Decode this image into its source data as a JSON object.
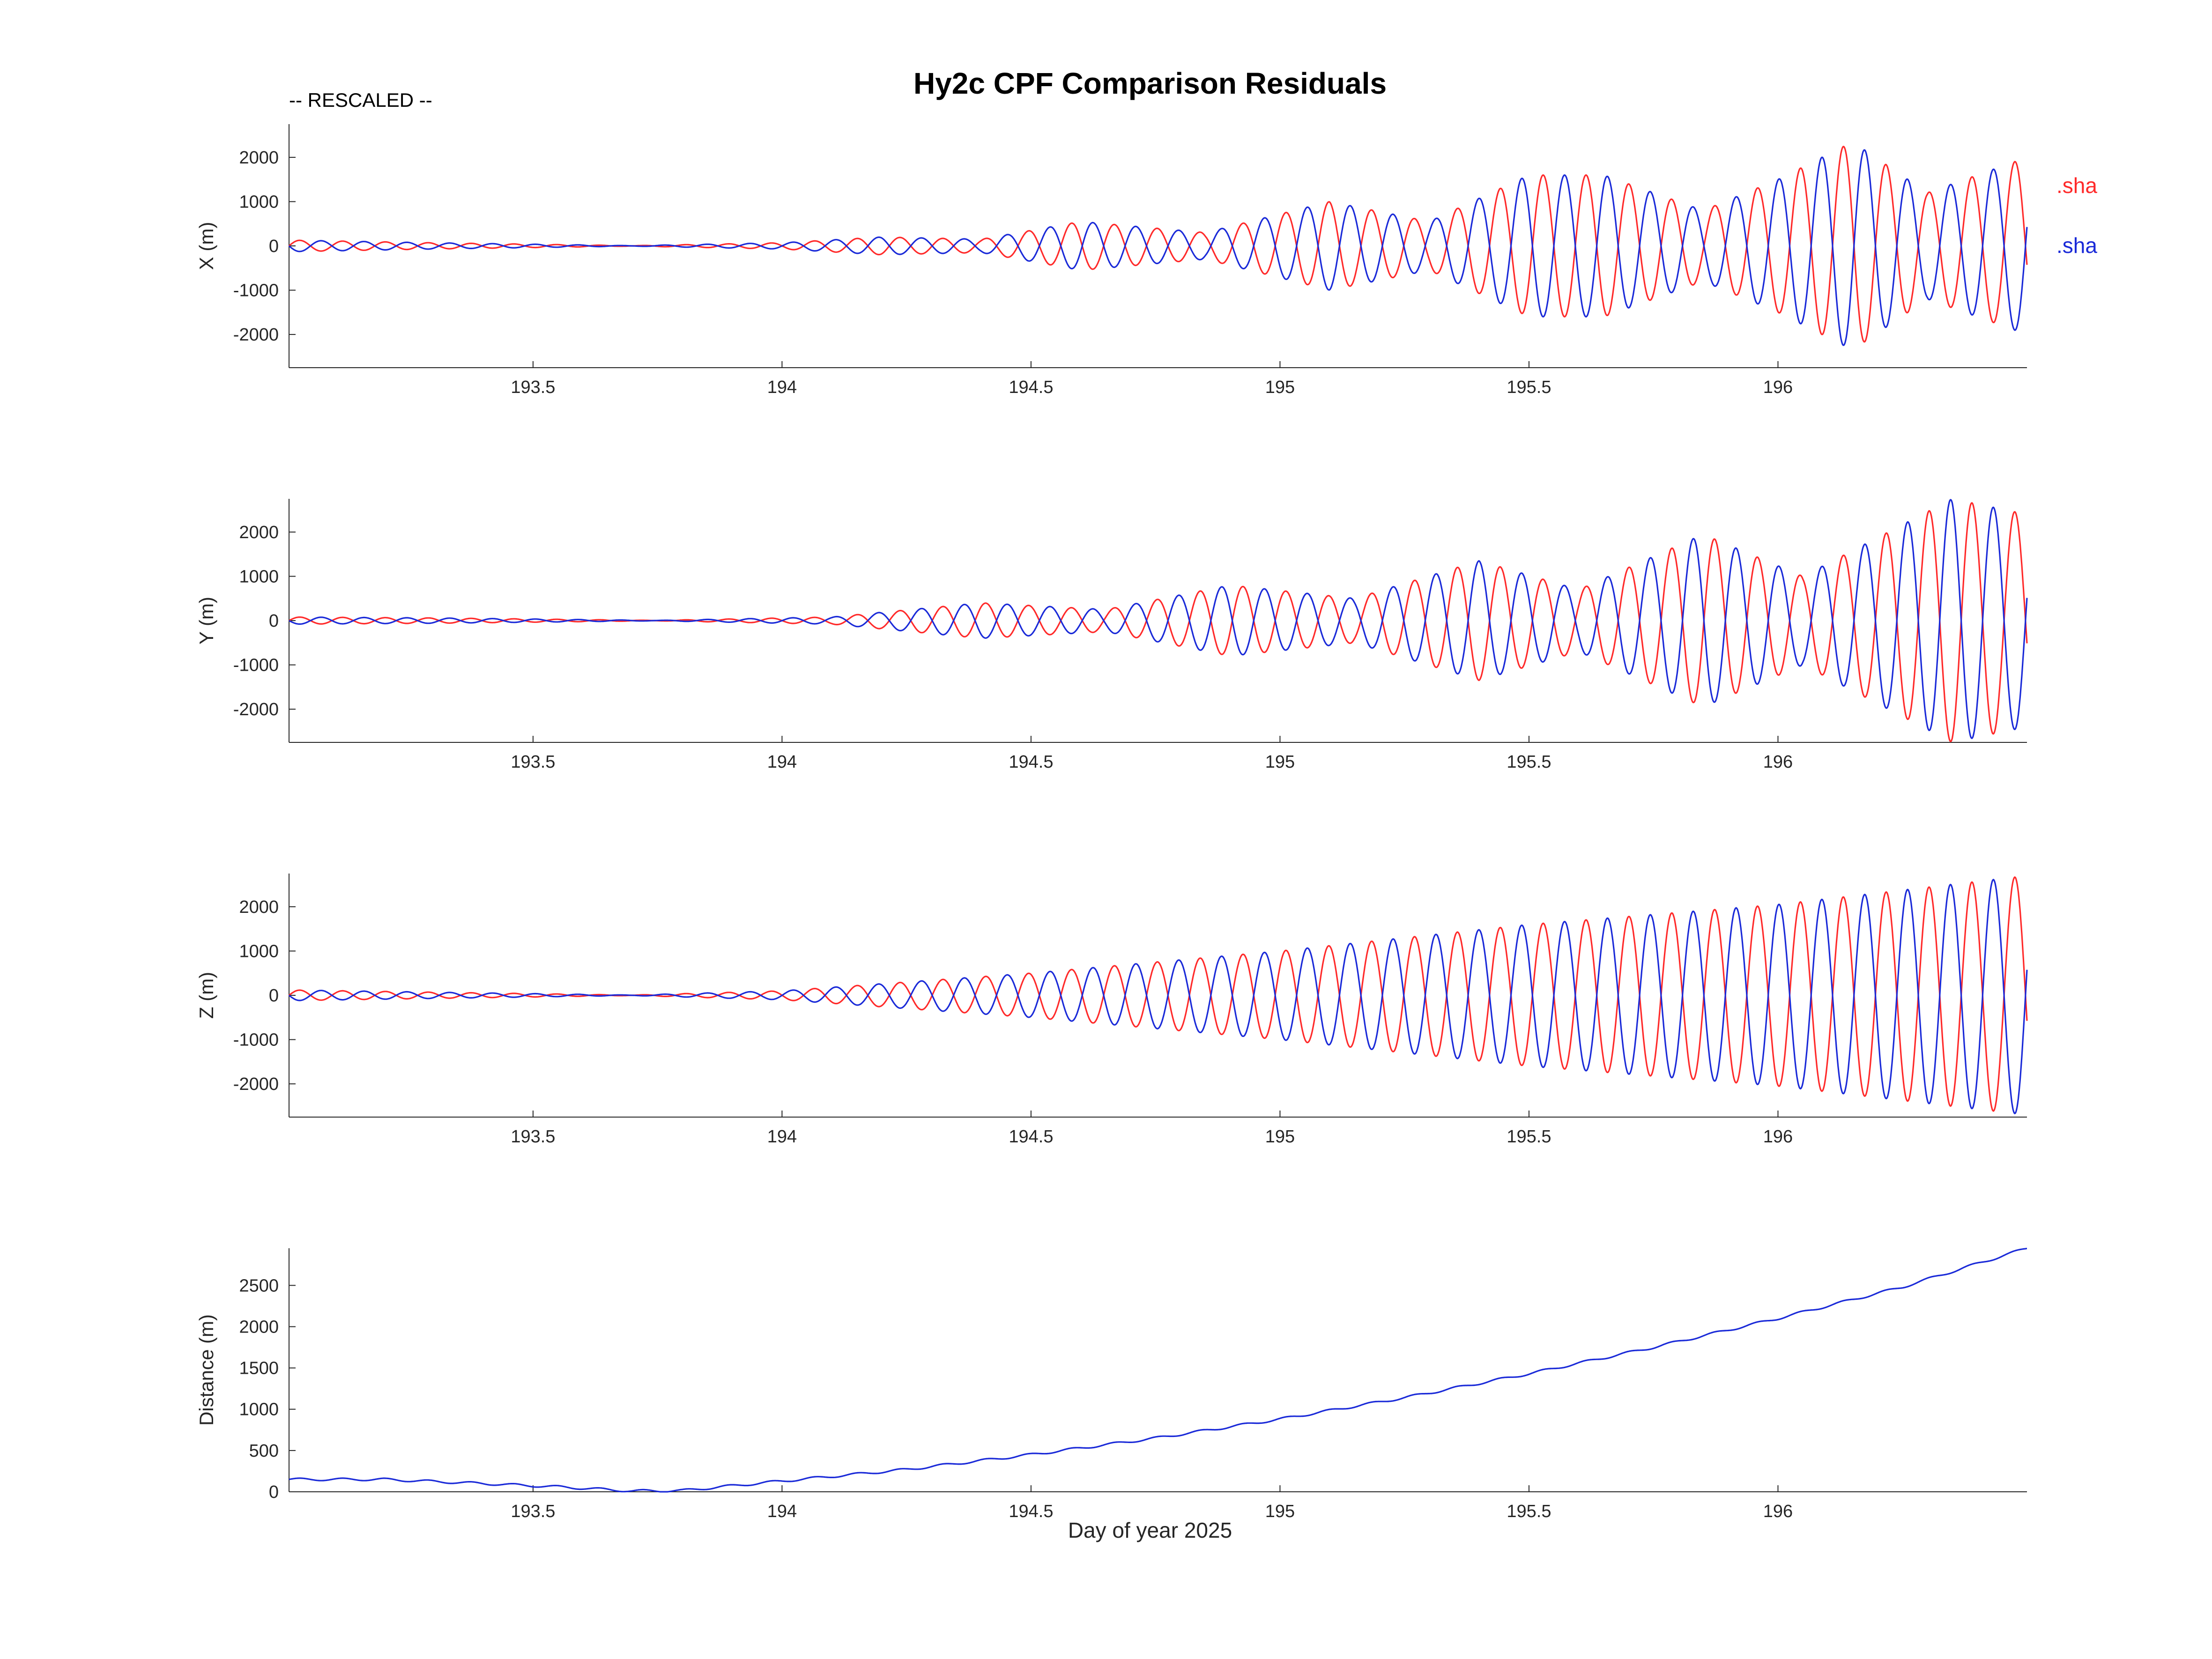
{
  "figure": {
    "title": "Hy2c CPF Comparison Residuals",
    "note": "-- RESCALED --",
    "xlabel": "Day of year 2025"
  },
  "legend": [
    {
      "label": ".sha",
      "color": "#ff2a2a"
    },
    {
      "label": ".sha",
      "color": "#1a2ad8"
    }
  ],
  "chart_data": [
    {
      "type": "line",
      "ylabel": "X (m)",
      "xlim": [
        193.01,
        196.5
      ],
      "ylim": [
        -2750,
        2750
      ],
      "xticks": [
        193.5,
        194,
        194.5,
        195,
        195.5,
        196
      ],
      "xtick_labels": [
        "193.5",
        "194",
        "194.5",
        "195",
        "195.5",
        "196"
      ],
      "yticks": [
        -2000,
        -1000,
        0,
        1000,
        2000
      ],
      "ytick_labels": [
        "-2000",
        "-1000",
        "0",
        "1000",
        "2000"
      ],
      "grid": false,
      "oscillation_period_days": 0.0861,
      "series": [
        {
          "name": ".sha",
          "color": "#ff2a2a",
          "phase": 1,
          "x": [
            193.01,
            193.3,
            193.7,
            194.0,
            194.2,
            194.4,
            194.6,
            194.85,
            195.1,
            195.3,
            195.5,
            195.65,
            195.85,
            196.0,
            196.15,
            196.3,
            196.5
          ],
          "amplitude": [
            130,
            70,
            5,
            70,
            200,
            150,
            550,
            300,
            1000,
            550,
            1600,
            1600,
            800,
            1500,
            2350,
            1200,
            2000
          ]
        },
        {
          "name": ".sha",
          "color": "#1a2ad8",
          "phase": -1,
          "x": [
            193.01,
            193.3,
            193.7,
            194.0,
            194.2,
            194.4,
            194.6,
            194.85,
            195.1,
            195.3,
            195.5,
            195.65,
            195.85,
            196.0,
            196.15,
            196.3,
            196.5
          ],
          "amplitude": [
            130,
            70,
            5,
            70,
            200,
            150,
            550,
            300,
            1000,
            550,
            1600,
            1600,
            800,
            1500,
            2350,
            1200,
            2000
          ]
        }
      ]
    },
    {
      "type": "line",
      "ylabel": "Y (m)",
      "xlim": [
        193.01,
        196.5
      ],
      "ylim": [
        -2750,
        2750
      ],
      "xticks": [
        193.5,
        194,
        194.5,
        195,
        195.5,
        196
      ],
      "xtick_labels": [
        "193.5",
        "194",
        "194.5",
        "195",
        "195.5",
        "196"
      ],
      "yticks": [
        -2000,
        -1000,
        0,
        1000,
        2000
      ],
      "ytick_labels": [
        "-2000",
        "-1000",
        "0",
        "1000",
        "2000"
      ],
      "grid": false,
      "oscillation_period_days": 0.0861,
      "series": [
        {
          "name": ".sha",
          "color": "#ff2a2a",
          "phase": 1,
          "x": [
            193.01,
            193.3,
            193.75,
            194.1,
            194.4,
            194.65,
            194.9,
            195.15,
            195.4,
            195.6,
            195.85,
            196.05,
            196.35,
            196.5
          ],
          "amplitude": [
            80,
            60,
            5,
            80,
            400,
            250,
            800,
            500,
            1350,
            700,
            1950,
            1000,
            2750,
            2400
          ]
        },
        {
          "name": ".sha",
          "color": "#1a2ad8",
          "phase": -1,
          "x": [
            193.01,
            193.3,
            193.75,
            194.1,
            194.4,
            194.65,
            194.9,
            195.15,
            195.4,
            195.6,
            195.85,
            196.05,
            196.35,
            196.5
          ],
          "amplitude": [
            80,
            60,
            5,
            80,
            400,
            250,
            800,
            500,
            1350,
            700,
            1950,
            1000,
            2750,
            2400
          ]
        }
      ]
    },
    {
      "type": "line",
      "ylabel": "Z (m)",
      "xlim": [
        193.01,
        196.5
      ],
      "ylim": [
        -2750,
        2750
      ],
      "xticks": [
        193.5,
        194,
        194.5,
        195,
        195.5,
        196
      ],
      "xtick_labels": [
        "193.5",
        "194",
        "194.5",
        "195",
        "195.5",
        "196"
      ],
      "yticks": [
        -2000,
        -1000,
        0,
        1000,
        2000
      ],
      "ytick_labels": [
        "-2000",
        "-1000",
        "0",
        "1000",
        "2000"
      ],
      "grid": false,
      "oscillation_period_days": 0.0861,
      "series": [
        {
          "name": ".sha",
          "color": "#ff2a2a",
          "phase": 1,
          "x": [
            193.01,
            193.3,
            193.7,
            194.0,
            194.5,
            195.0,
            195.5,
            196.0,
            196.5
          ],
          "amplitude": [
            120,
            70,
            5,
            100,
            500,
            1000,
            1600,
            2050,
            2700
          ]
        },
        {
          "name": ".sha",
          "color": "#1a2ad8",
          "phase": -1,
          "x": [
            193.01,
            193.3,
            193.7,
            194.0,
            194.5,
            195.0,
            195.5,
            196.0,
            196.5
          ],
          "amplitude": [
            120,
            70,
            5,
            100,
            500,
            1000,
            1600,
            2050,
            2700
          ]
        }
      ]
    },
    {
      "type": "line",
      "ylabel": "Distance (m)",
      "xlim": [
        193.01,
        196.5
      ],
      "ylim": [
        0,
        2950
      ],
      "xticks": [
        193.5,
        194,
        194.5,
        195,
        195.5,
        196
      ],
      "xtick_labels": [
        "193.5",
        "194",
        "194.5",
        "195",
        "195.5",
        "196"
      ],
      "yticks": [
        0,
        500,
        1000,
        1500,
        2000,
        2500
      ],
      "ytick_labels": [
        "0",
        "500",
        "1000",
        "1500",
        "2000",
        "2500"
      ],
      "grid": false,
      "series": [
        {
          "color": "#1a2ad8",
          "x": [
            193.01,
            193.2,
            193.4,
            193.55,
            193.7,
            193.8,
            194.0,
            194.25,
            194.5,
            194.75,
            195.0,
            195.25,
            195.5,
            195.75,
            196.0,
            196.25,
            196.5
          ],
          "y": [
            150,
            150,
            100,
            60,
            10,
            15,
            130,
            270,
            450,
            650,
            880,
            1140,
            1430,
            1750,
            2100,
            2480,
            2950
          ],
          "ripple": 15
        }
      ]
    }
  ]
}
